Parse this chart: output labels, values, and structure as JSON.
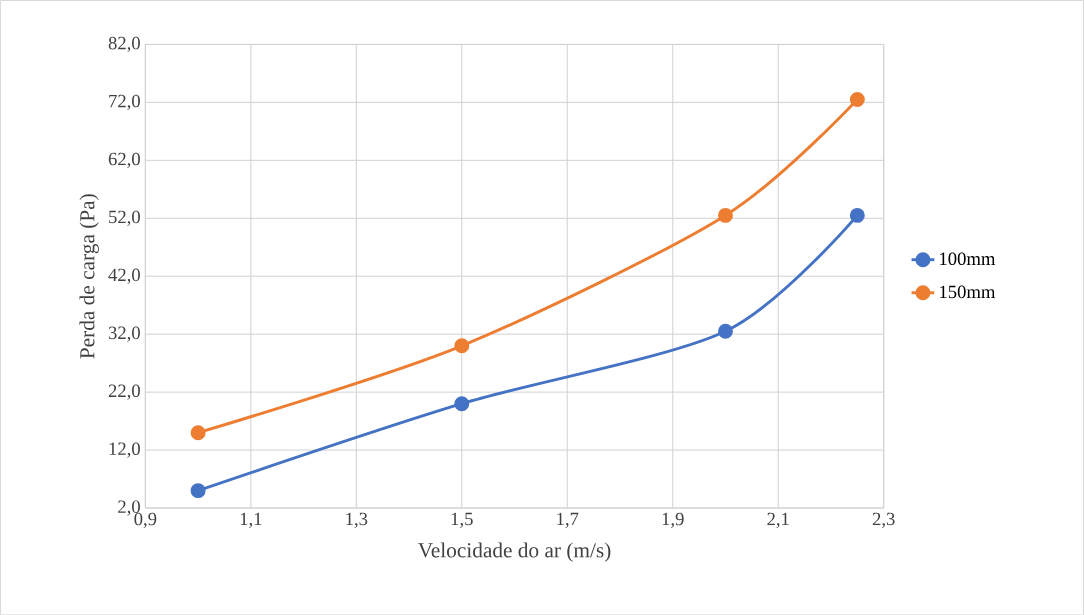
{
  "chart_data": {
    "type": "line",
    "xlabel": "Velocidade do ar (m/s)",
    "ylabel": "Perda de carga (Pa)",
    "x": [
      1.0,
      1.5,
      2.0,
      2.25
    ],
    "series": [
      {
        "name": "100mm",
        "color": "#4472c4",
        "values": [
          5,
          20,
          32.5,
          52.5
        ]
      },
      {
        "name": "150mm",
        "color": "#ed7d31",
        "values": [
          15,
          30,
          52.5,
          72.5
        ]
      }
    ],
    "xlim": [
      0.9,
      2.3
    ],
    "xticks": [
      {
        "value": 0.9,
        "label": "0,9"
      },
      {
        "value": 1.1,
        "label": "1,1"
      },
      {
        "value": 1.3,
        "label": "1,3"
      },
      {
        "value": 1.5,
        "label": "1,5"
      },
      {
        "value": 1.7,
        "label": "1,7"
      },
      {
        "value": 1.9,
        "label": "1,9"
      },
      {
        "value": 2.1,
        "label": "2,1"
      },
      {
        "value": 2.3,
        "label": "2,3"
      }
    ],
    "ylim": [
      2,
      82
    ],
    "yticks": [
      {
        "value": 2,
        "label": "2,0"
      },
      {
        "value": 12,
        "label": "12,0"
      },
      {
        "value": 22,
        "label": "22,0"
      },
      {
        "value": 32,
        "label": "32,0"
      },
      {
        "value": 42,
        "label": "42,0"
      },
      {
        "value": 52,
        "label": "52,0"
      },
      {
        "value": 62,
        "label": "62,0"
      },
      {
        "value": 72,
        "label": "72,0"
      },
      {
        "value": 82,
        "label": "82,0"
      }
    ],
    "grid": true,
    "legend": "right",
    "marker": "circle",
    "line_style": "solid"
  }
}
